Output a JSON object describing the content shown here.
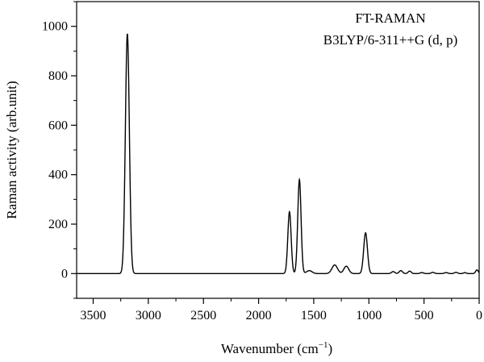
{
  "chart_data": {
    "type": "line",
    "title": "",
    "xlabel": "Wavenumber (cm",
    "xlabel_sup": "−1",
    "xlabel_close": ")",
    "ylabel": "Raman activity (arb.unit)",
    "annotations": [
      "FT-RAMAN",
      "B3LYP/6-311++G (d, p)"
    ],
    "x_reversed": true,
    "xlim": [
      0,
      3650
    ],
    "ylim": [
      -100,
      1100
    ],
    "x_ticks": [
      3500,
      3000,
      2500,
      2000,
      1500,
      1000,
      500,
      0
    ],
    "y_ticks": [
      0,
      200,
      400,
      600,
      800,
      1000
    ],
    "grid": false,
    "line_color": "#000000",
    "peaks": [
      {
        "x": 3190,
        "y": 970,
        "width": 18
      },
      {
        "x": 1720,
        "y": 250,
        "width": 15
      },
      {
        "x": 1630,
        "y": 380,
        "width": 15
      },
      {
        "x": 1540,
        "y": 12,
        "width": 25
      },
      {
        "x": 1310,
        "y": 35,
        "width": 25
      },
      {
        "x": 1205,
        "y": 30,
        "width": 22
      },
      {
        "x": 1030,
        "y": 165,
        "width": 17
      },
      {
        "x": 780,
        "y": 8,
        "width": 15
      },
      {
        "x": 710,
        "y": 12,
        "width": 15
      },
      {
        "x": 630,
        "y": 10,
        "width": 14
      },
      {
        "x": 520,
        "y": 4,
        "width": 15
      },
      {
        "x": 420,
        "y": 5,
        "width": 15
      },
      {
        "x": 300,
        "y": 4,
        "width": 15
      },
      {
        "x": 210,
        "y": 5,
        "width": 14
      },
      {
        "x": 130,
        "y": 4,
        "width": 12
      },
      {
        "x": 20,
        "y": 15,
        "width": 12
      }
    ]
  }
}
